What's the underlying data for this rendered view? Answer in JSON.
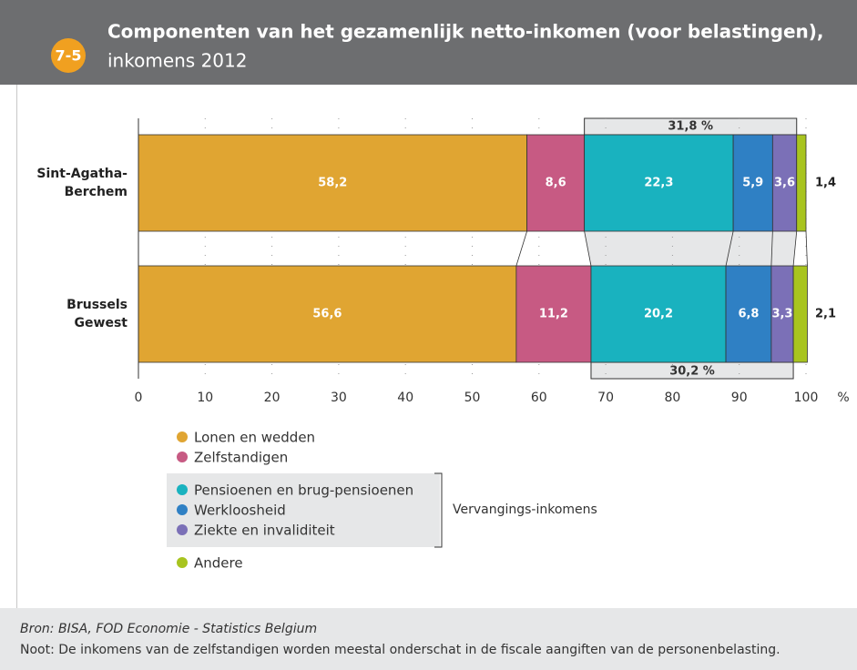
{
  "chart_data": {
    "type": "stacked_barh",
    "badge": "7-5",
    "title": "Componenten van het gezamenlijk netto-inkomen (voor belastingen),",
    "subtitle": "inkomens 2012",
    "categories": [
      "Sint-Agatha-Berchem",
      "Brussels Gewest"
    ],
    "series": [
      {
        "name": "Lonen en wedden",
        "color": "#e0a532",
        "values": [
          58.2,
          56.6
        ],
        "value_labels": [
          "58,2",
          "56,6"
        ]
      },
      {
        "name": "Zelfstandigen",
        "color": "#c75a83",
        "values": [
          8.6,
          11.2
        ],
        "value_labels": [
          "8,6",
          "11,2"
        ]
      },
      {
        "name": "Pensioenen en brug-pensioenen",
        "color": "#19b2bf",
        "values": [
          22.3,
          20.2
        ],
        "value_labels": [
          "22,3",
          "20,2"
        ]
      },
      {
        "name": "Werkloosheid",
        "color": "#2f80c4",
        "values": [
          5.9,
          6.8
        ],
        "value_labels": [
          "5,9",
          "6,8"
        ]
      },
      {
        "name": "Ziekte en invaliditeit",
        "color": "#7b70b7",
        "values": [
          3.6,
          3.3
        ],
        "value_labels": [
          "3,6",
          "3,3"
        ]
      },
      {
        "name": "Andere",
        "color": "#a8c41f",
        "values": [
          1.4,
          2.1
        ],
        "value_labels": [
          "1,4",
          "2,1"
        ]
      }
    ],
    "group_label": "Vervangings-inkomens",
    "group_totals": [
      {
        "value": 31.8,
        "label": "31,8 %"
      },
      {
        "value": 30.2,
        "label": "30,2 %"
      }
    ],
    "xlim": [
      0,
      100
    ],
    "xticks": [
      0,
      10,
      20,
      30,
      40,
      50,
      60,
      70,
      80,
      90,
      100
    ],
    "x_unit": "%",
    "grid": true,
    "source": "Bron: BISA, FOD Economie - Statistics Belgium",
    "note": "Noot: De inkomens van de zelfstandigen worden meestal onderschat in de fiscale aangiften van de personenbelasting."
  }
}
